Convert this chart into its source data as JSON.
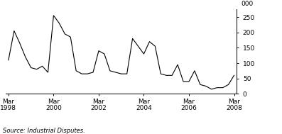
{
  "title": "",
  "ylabel": "000",
  "source_text": "Source: Industrial Disputes.",
  "ylim": [
    0,
    275
  ],
  "yticks": [
    0,
    50,
    100,
    150,
    200,
    250
  ],
  "xtick_labels": [
    "Mar\n1998",
    "Mar\n2000",
    "Mar\n2002",
    "Mar\n2004",
    "Mar\n2006",
    "Mar\n2008"
  ],
  "xtick_positions": [
    0,
    8,
    16,
    24,
    32,
    40
  ],
  "line_color": "#000000",
  "background_color": "#ffffff",
  "x": [
    0,
    1,
    2,
    3,
    4,
    5,
    6,
    7,
    8,
    9,
    10,
    11,
    12,
    13,
    14,
    15,
    16,
    17,
    18,
    19,
    20,
    21,
    22,
    23,
    24,
    25,
    26,
    27,
    28,
    29,
    30,
    31,
    32,
    33,
    34,
    35,
    36,
    37,
    38,
    39,
    40
  ],
  "y": [
    110,
    205,
    165,
    120,
    85,
    80,
    90,
    70,
    255,
    230,
    195,
    185,
    75,
    65,
    65,
    70,
    140,
    130,
    75,
    70,
    65,
    65,
    180,
    155,
    130,
    170,
    155,
    65,
    60,
    60,
    95,
    40,
    40,
    75,
    30,
    25,
    15,
    20,
    20,
    30,
    60
  ]
}
